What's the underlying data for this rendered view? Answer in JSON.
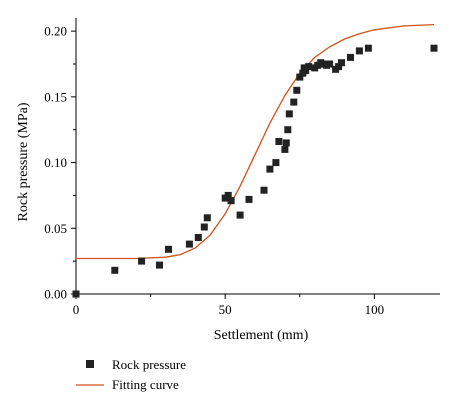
{
  "chart_data": {
    "type": "scatter",
    "title": "",
    "xlabel": "Settlement (mm)",
    "ylabel": "Rock pressure (MPa)",
    "xlim": [
      0,
      122
    ],
    "ylim": [
      0,
      0.21
    ],
    "xticks": [
      0,
      50,
      100
    ],
    "xtick_labels": [
      "0",
      "50",
      "100"
    ],
    "yticks": [
      0,
      0.05,
      0.1,
      0.15,
      0.2
    ],
    "ytick_labels": [
      "0.00",
      "0.05",
      "0.10",
      "0.15",
      "0.20"
    ],
    "grid": false,
    "legend_position": "bottom",
    "colors": {
      "points": "#222222",
      "curve": "#d2521b"
    },
    "series": [
      {
        "name": "Rock pressure",
        "kind": "scatter",
        "points": [
          [
            0,
            0.0
          ],
          [
            13,
            0.018
          ],
          [
            22,
            0.025
          ],
          [
            28,
            0.022
          ],
          [
            31,
            0.034
          ],
          [
            38,
            0.038
          ],
          [
            41,
            0.043
          ],
          [
            43,
            0.051
          ],
          [
            44,
            0.058
          ],
          [
            50,
            0.073
          ],
          [
            51,
            0.075
          ],
          [
            52,
            0.071
          ],
          [
            55,
            0.06
          ],
          [
            58,
            0.072
          ],
          [
            63,
            0.079
          ],
          [
            65,
            0.095
          ],
          [
            67,
            0.1
          ],
          [
            68,
            0.116
          ],
          [
            70,
            0.11
          ],
          [
            70.5,
            0.115
          ],
          [
            71,
            0.125
          ],
          [
            71.5,
            0.137
          ],
          [
            73,
            0.146
          ],
          [
            74,
            0.155
          ],
          [
            75,
            0.165
          ],
          [
            76,
            0.168
          ],
          [
            76.5,
            0.172
          ],
          [
            77,
            0.17
          ],
          [
            78,
            0.173
          ],
          [
            80,
            0.172
          ],
          [
            81,
            0.174
          ],
          [
            82,
            0.176
          ],
          [
            83,
            0.175
          ],
          [
            84,
            0.174
          ],
          [
            85,
            0.175
          ],
          [
            87,
            0.171
          ],
          [
            88,
            0.173
          ],
          [
            89,
            0.176
          ],
          [
            92,
            0.18
          ],
          [
            95,
            0.185
          ],
          [
            98,
            0.187
          ],
          [
            120,
            0.187
          ]
        ]
      },
      {
        "name": "Fitting curve",
        "kind": "line",
        "points": [
          [
            0,
            0.027
          ],
          [
            20,
            0.027
          ],
          [
            30,
            0.028
          ],
          [
            35,
            0.03
          ],
          [
            40,
            0.035
          ],
          [
            45,
            0.045
          ],
          [
            50,
            0.061
          ],
          [
            55,
            0.082
          ],
          [
            60,
            0.106
          ],
          [
            65,
            0.13
          ],
          [
            70,
            0.151
          ],
          [
            75,
            0.168
          ],
          [
            80,
            0.18
          ],
          [
            85,
            0.188
          ],
          [
            90,
            0.194
          ],
          [
            95,
            0.198
          ],
          [
            100,
            0.201
          ],
          [
            110,
            0.204
          ],
          [
            120,
            0.205
          ]
        ]
      }
    ]
  }
}
